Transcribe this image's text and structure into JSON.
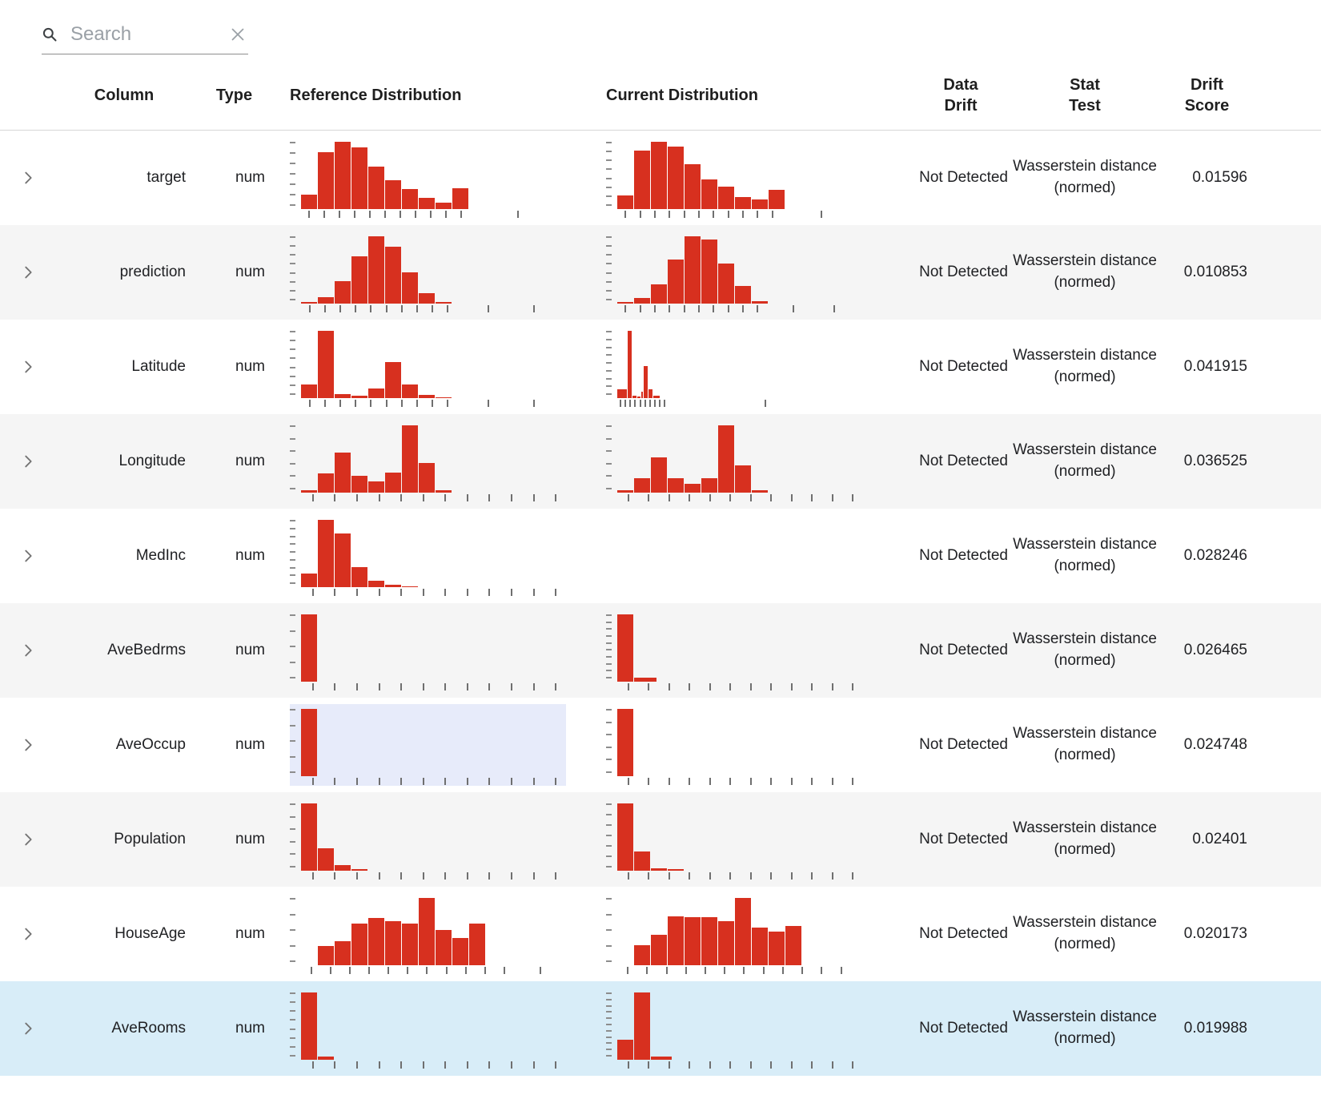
{
  "search": {
    "placeholder": "Search",
    "value": ""
  },
  "colors": {
    "bar": "#d7301f",
    "row_alt": "#f5f5f5",
    "row_selected": "#d8edf8",
    "chart_hover_highlight": "#e7ebfa"
  },
  "table": {
    "headers": [
      "Column",
      "Type",
      "Reference Distribution",
      "Current Distribution",
      "Data\nDrift",
      "Stat\nTest",
      "Drift\nScore"
    ],
    "rows": [
      {
        "name": "target",
        "type": "num",
        "data_drift": "Not Detected",
        "stat_test": "Wasserstein distance (normed)",
        "drift_score": "0.01596",
        "selected": false,
        "ref": {
          "bars": [
            0.22,
            0.85,
            1,
            0.92,
            0.63,
            0.43,
            0.3,
            0.17,
            0.1,
            0.31
          ],
          "yticks": 7,
          "xticks": {
            "count": 11,
            "span": 0.63,
            "extra": 1
          }
        },
        "cur": {
          "bars": [
            0.2,
            0.87,
            1,
            0.93,
            0.67,
            0.44,
            0.33,
            0.18,
            0.14,
            0.29
          ],
          "yticks": 8,
          "xticks": {
            "count": 11,
            "span": 0.66,
            "extra": 1
          }
        }
      },
      {
        "name": "prediction",
        "type": "num",
        "data_drift": "Not Detected",
        "stat_test": "Wasserstein distance (normed)",
        "drift_score": "0.010853",
        "selected": false,
        "ref": {
          "bars": [
            0.02,
            0.1,
            0.33,
            0.7,
            1,
            0.84,
            0.47,
            0.15,
            0.02
          ],
          "yticks": 8,
          "xticks": {
            "count": 10,
            "span": 0.58,
            "extra": 2
          }
        },
        "cur": {
          "bars": [
            0.02,
            0.08,
            0.28,
            0.65,
            1,
            0.95,
            0.6,
            0.26,
            0.04
          ],
          "yticks": 8,
          "xticks": {
            "count": 10,
            "span": 0.6,
            "extra": 2
          }
        }
      },
      {
        "name": "Latitude",
        "type": "num",
        "data_drift": "Not Detected",
        "stat_test": "Wasserstein distance (normed)",
        "drift_score": "0.041915",
        "selected": false,
        "ref": {
          "bars": [
            0.2,
            1,
            0.06,
            0.04,
            0.14,
            0.53,
            0.2,
            0.05,
            0.015
          ],
          "yticks": 8,
          "xticks": {
            "count": 10,
            "span": 0.58,
            "extra": 2
          }
        },
        "cur": {
          "bars": [
            {
              "h": 0.13,
              "w": 0.6
            },
            {
              "h": 1,
              "w": 0.28
            },
            {
              "h": 0.04,
              "w": 0.3
            },
            {
              "h": 0.02,
              "w": 0.25
            },
            {
              "h": 0.09,
              "w": 0.12
            },
            {
              "h": 0.48,
              "w": 0.3
            },
            {
              "h": 0.13,
              "w": 0.3
            },
            {
              "h": 0.03,
              "w": 0.45
            }
          ],
          "yticks": 9,
          "xticks": {
            "count": 10,
            "span": 0.2,
            "extra": 1
          }
        }
      },
      {
        "name": "Longitude",
        "type": "num",
        "data_drift": "Not Detected",
        "stat_test": "Wasserstein distance (normed)",
        "drift_score": "0.036525",
        "selected": false,
        "ref": {
          "bars": [
            0.04,
            0.28,
            0.6,
            0.25,
            0.17,
            0.3,
            1,
            0.44,
            0.03
          ],
          "yticks": 6,
          "xticks": {
            "count": 12,
            "span": 1,
            "extra": 0
          }
        },
        "cur": {
          "bars": [
            0.03,
            0.22,
            0.52,
            0.22,
            0.13,
            0.22,
            1,
            0.4,
            0.04
          ],
          "yticks": 6,
          "xticks": {
            "count": 12,
            "span": 1,
            "extra": 0
          }
        }
      },
      {
        "name": "MedInc",
        "type": "num",
        "data_drift": "Not Detected",
        "stat_test": "Wasserstein distance (normed)",
        "drift_score": "0.028246",
        "selected": false,
        "ref": {
          "bars": [
            0.2,
            1,
            0.8,
            0.3,
            0.09,
            0.04,
            0.015
          ],
          "yticks": 9,
          "xticks": {
            "count": 12,
            "span": 1,
            "extra": 0
          }
        },
        "cur": null
      },
      {
        "name": "AveBedrms",
        "type": "num",
        "data_drift": "Not Detected",
        "stat_test": "Wasserstein distance (normed)",
        "drift_score": "0.026465",
        "selected": false,
        "ref": {
          "bars": [
            1
          ],
          "yticks": 5,
          "xticks": {
            "count": 12,
            "span": 1,
            "extra": 0
          }
        },
        "cur": {
          "bars": [
            1,
            {
              "h": 0.06,
              "w": 1.4
            }
          ],
          "yticks": 10,
          "xticks": {
            "count": 12,
            "span": 1,
            "extra": 0
          }
        }
      },
      {
        "name": "AveOccup",
        "type": "num",
        "data_drift": "Not Detected",
        "stat_test": "Wasserstein distance (normed)",
        "drift_score": "0.024748",
        "selected": false,
        "ref": {
          "bars": [
            1
          ],
          "yticks": 5,
          "highlight": true,
          "xticks": {
            "count": 12,
            "span": 1,
            "extra": 0
          }
        },
        "cur": {
          "bars": [
            1
          ],
          "yticks": 6,
          "xticks": {
            "count": 12,
            "span": 1,
            "extra": 0
          }
        }
      },
      {
        "name": "Population",
        "type": "num",
        "data_drift": "Not Detected",
        "stat_test": "Wasserstein distance (normed)",
        "drift_score": "0.02401",
        "selected": false,
        "ref": {
          "bars": [
            1,
            0.33,
            0.08,
            0.02
          ],
          "yticks": 6,
          "xticks": {
            "count": 12,
            "span": 1,
            "extra": 0
          }
        },
        "cur": {
          "bars": [
            1,
            0.28,
            0.04,
            0.02
          ],
          "yticks": 7,
          "xticks": {
            "count": 12,
            "span": 1,
            "extra": 0
          }
        }
      },
      {
        "name": "HouseAge",
        "type": "num",
        "data_drift": "Not Detected",
        "stat_test": "Wasserstein distance (normed)",
        "drift_score": "0.020173",
        "selected": false,
        "ref": {
          "bars": [
            0,
            0.28,
            0.36,
            0.62,
            0.7,
            0.65,
            0.62,
            1,
            0.52,
            0.4,
            0.62
          ],
          "yticks": 5,
          "xticks": {
            "count": 11,
            "span": 0.8,
            "extra": 1
          }
        },
        "cur": {
          "bars": [
            0,
            0.3,
            0.45,
            0.73,
            0.71,
            0.71,
            0.66,
            1,
            0.56,
            0.5,
            0.58
          ],
          "yticks": 5,
          "xticks": {
            "count": 12,
            "span": 0.95,
            "extra": 0
          }
        }
      },
      {
        "name": "AveRooms",
        "type": "num",
        "data_drift": "Not Detected",
        "stat_test": "Wasserstein distance (normed)",
        "drift_score": "0.019988",
        "selected": true,
        "ref": {
          "bars": [
            1,
            0.05
          ],
          "yticks": 8,
          "xticks": {
            "count": 12,
            "span": 1,
            "extra": 0
          }
        },
        "cur": {
          "bars": [
            0.3,
            1,
            {
              "h": 0.05,
              "w": 1.3
            }
          ],
          "yticks": 11,
          "xticks": {
            "count": 12,
            "span": 1,
            "extra": 0
          }
        }
      }
    ]
  }
}
